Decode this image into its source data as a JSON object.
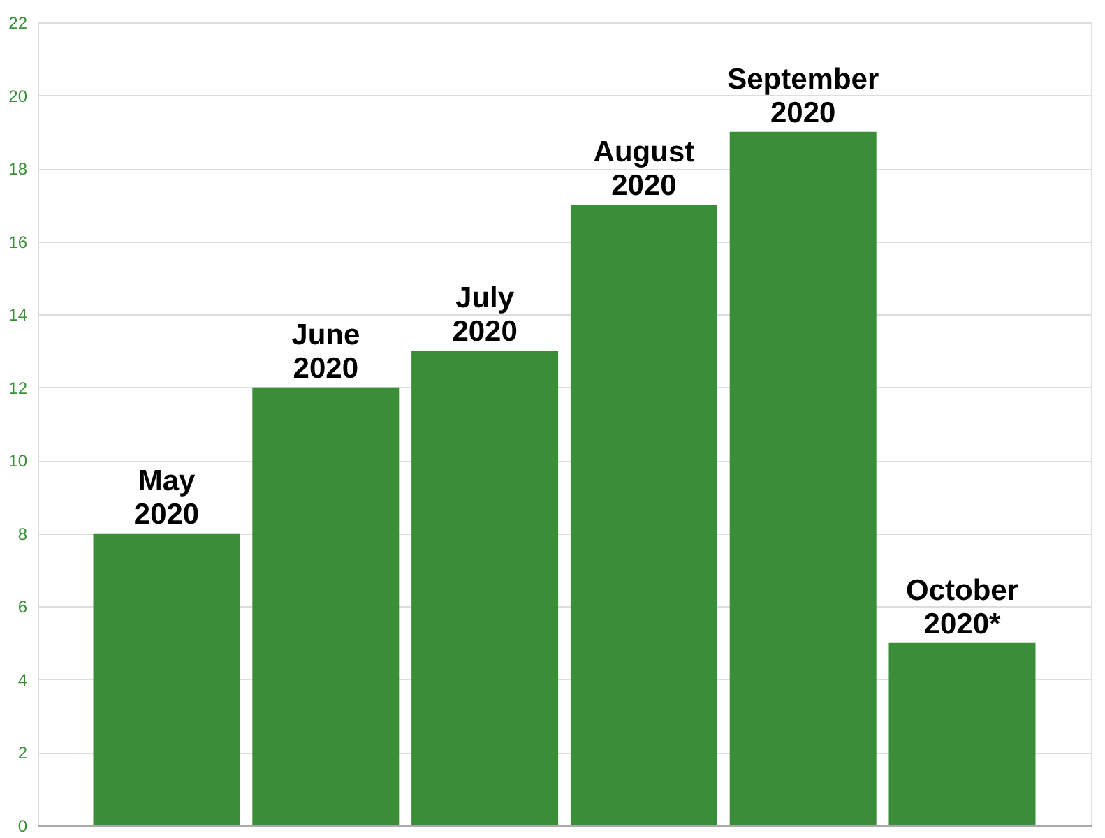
{
  "chart_data": {
    "type": "bar",
    "categories": [
      "May 2020",
      "June 2020",
      "July 2020",
      "August 2020",
      "September 2020",
      "October 2020*"
    ],
    "values": [
      8,
      12,
      13,
      17,
      19,
      5
    ],
    "color": "#3b8e38",
    "ylim": [
      0,
      22
    ],
    "yticks": [
      0,
      2,
      4,
      6,
      8,
      10,
      12,
      14,
      16,
      18,
      20,
      22
    ],
    "grid": "y",
    "tick_labels": "y"
  }
}
